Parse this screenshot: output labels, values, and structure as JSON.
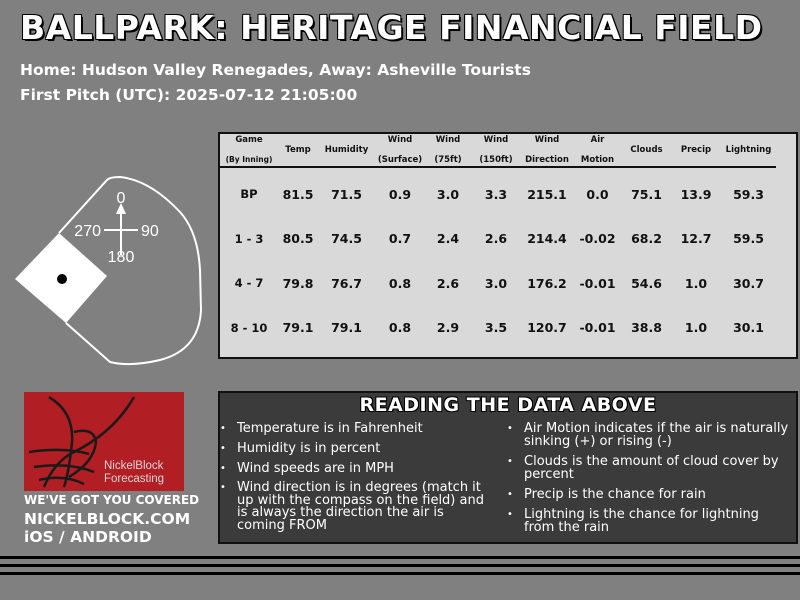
{
  "header": {
    "title": "BALLPARK: HERITAGE FINANCIAL FIELD",
    "teams": "Home: Hudson Valley Renegades, Away: Asheville Tourists",
    "first_pitch": "First Pitch (UTC): 2025-07-12 21:05:00"
  },
  "compass": {
    "north": "0",
    "east": "90",
    "south": "180",
    "west": "270"
  },
  "table": {
    "headers": [
      [
        "Game",
        "(By Inning)"
      ],
      [
        "Temp"
      ],
      [
        "Humidity"
      ],
      [
        "Wind",
        "(Surface)"
      ],
      [
        "Wind",
        "(75ft)"
      ],
      [
        "Wind",
        "(150ft)"
      ],
      [
        "Wind",
        "Direction"
      ],
      [
        "Air",
        "Motion"
      ],
      [
        "Clouds"
      ],
      [
        "Precip"
      ],
      [
        "Lightning"
      ]
    ],
    "rows": [
      [
        "BP",
        "81.5",
        "71.5",
        "0.9",
        "3.0",
        "3.3",
        "215.1",
        "0.0",
        "75.1",
        "13.9",
        "59.3"
      ],
      [
        "1 - 3",
        "80.5",
        "74.5",
        "0.7",
        "2.4",
        "2.6",
        "214.4",
        "-0.02",
        "68.2",
        "12.7",
        "59.5"
      ],
      [
        "4 - 7",
        "79.8",
        "76.7",
        "0.8",
        "2.6",
        "3.0",
        "176.2",
        "-0.01",
        "54.6",
        "1.0",
        "30.7"
      ],
      [
        "8 - 10",
        "79.1",
        "79.1",
        "0.8",
        "2.9",
        "3.5",
        "120.7",
        "-0.01",
        "38.8",
        "1.0",
        "30.1"
      ]
    ]
  },
  "legend": {
    "title": "READING THE DATA ABOVE",
    "left": [
      "Temperature is in Fahrenheit",
      "Humidity is in percent",
      "Wind speeds are in MPH",
      "Wind direction is in degrees (match it up with the compass on the field) and is always the direction the air is coming FROM"
    ],
    "right": [
      "Air Motion indicates if the air is naturally sinking (+) or rising (-)",
      "Clouds is the amount of cloud cover by percent",
      "Precip is the chance for rain",
      "Lightning is the chance for lightning from the rain"
    ]
  },
  "brand": {
    "logo_text_1": "NickelBlock",
    "logo_text_2": "Forecasting",
    "tagline": "WE'VE GOT YOU COVERED",
    "website": "NICKELBLOCK.COM",
    "platforms": "iOS / ANDROID",
    "logo_color": "#b11e24"
  },
  "colors": {
    "background": "#808080",
    "table_bg": "#d9d9d9",
    "legend_bg": "#3b3b3b"
  }
}
